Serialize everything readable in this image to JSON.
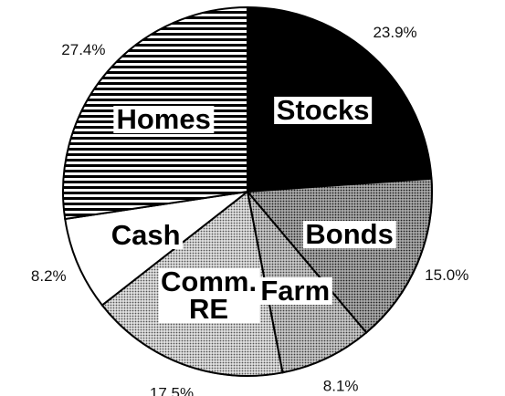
{
  "chart_data": {
    "type": "pie",
    "categories": [
      "Stocks",
      "Bonds",
      "Farm",
      "Comm. RE",
      "Cash",
      "Homes"
    ],
    "values": [
      23.9,
      15.0,
      8.1,
      17.5,
      8.2,
      27.4
    ],
    "value_labels": [
      "23.9%",
      "15.0%",
      "8.1%",
      "17.5%",
      "8.2%",
      "27.4%"
    ],
    "colors": [
      "#000000",
      "#444444",
      "#888888",
      "#bbbbbb",
      "#ffffff",
      "#000000"
    ],
    "patterns": [
      "solid",
      "dots",
      "dots",
      "dots",
      "solid",
      "stripes"
    ]
  }
}
